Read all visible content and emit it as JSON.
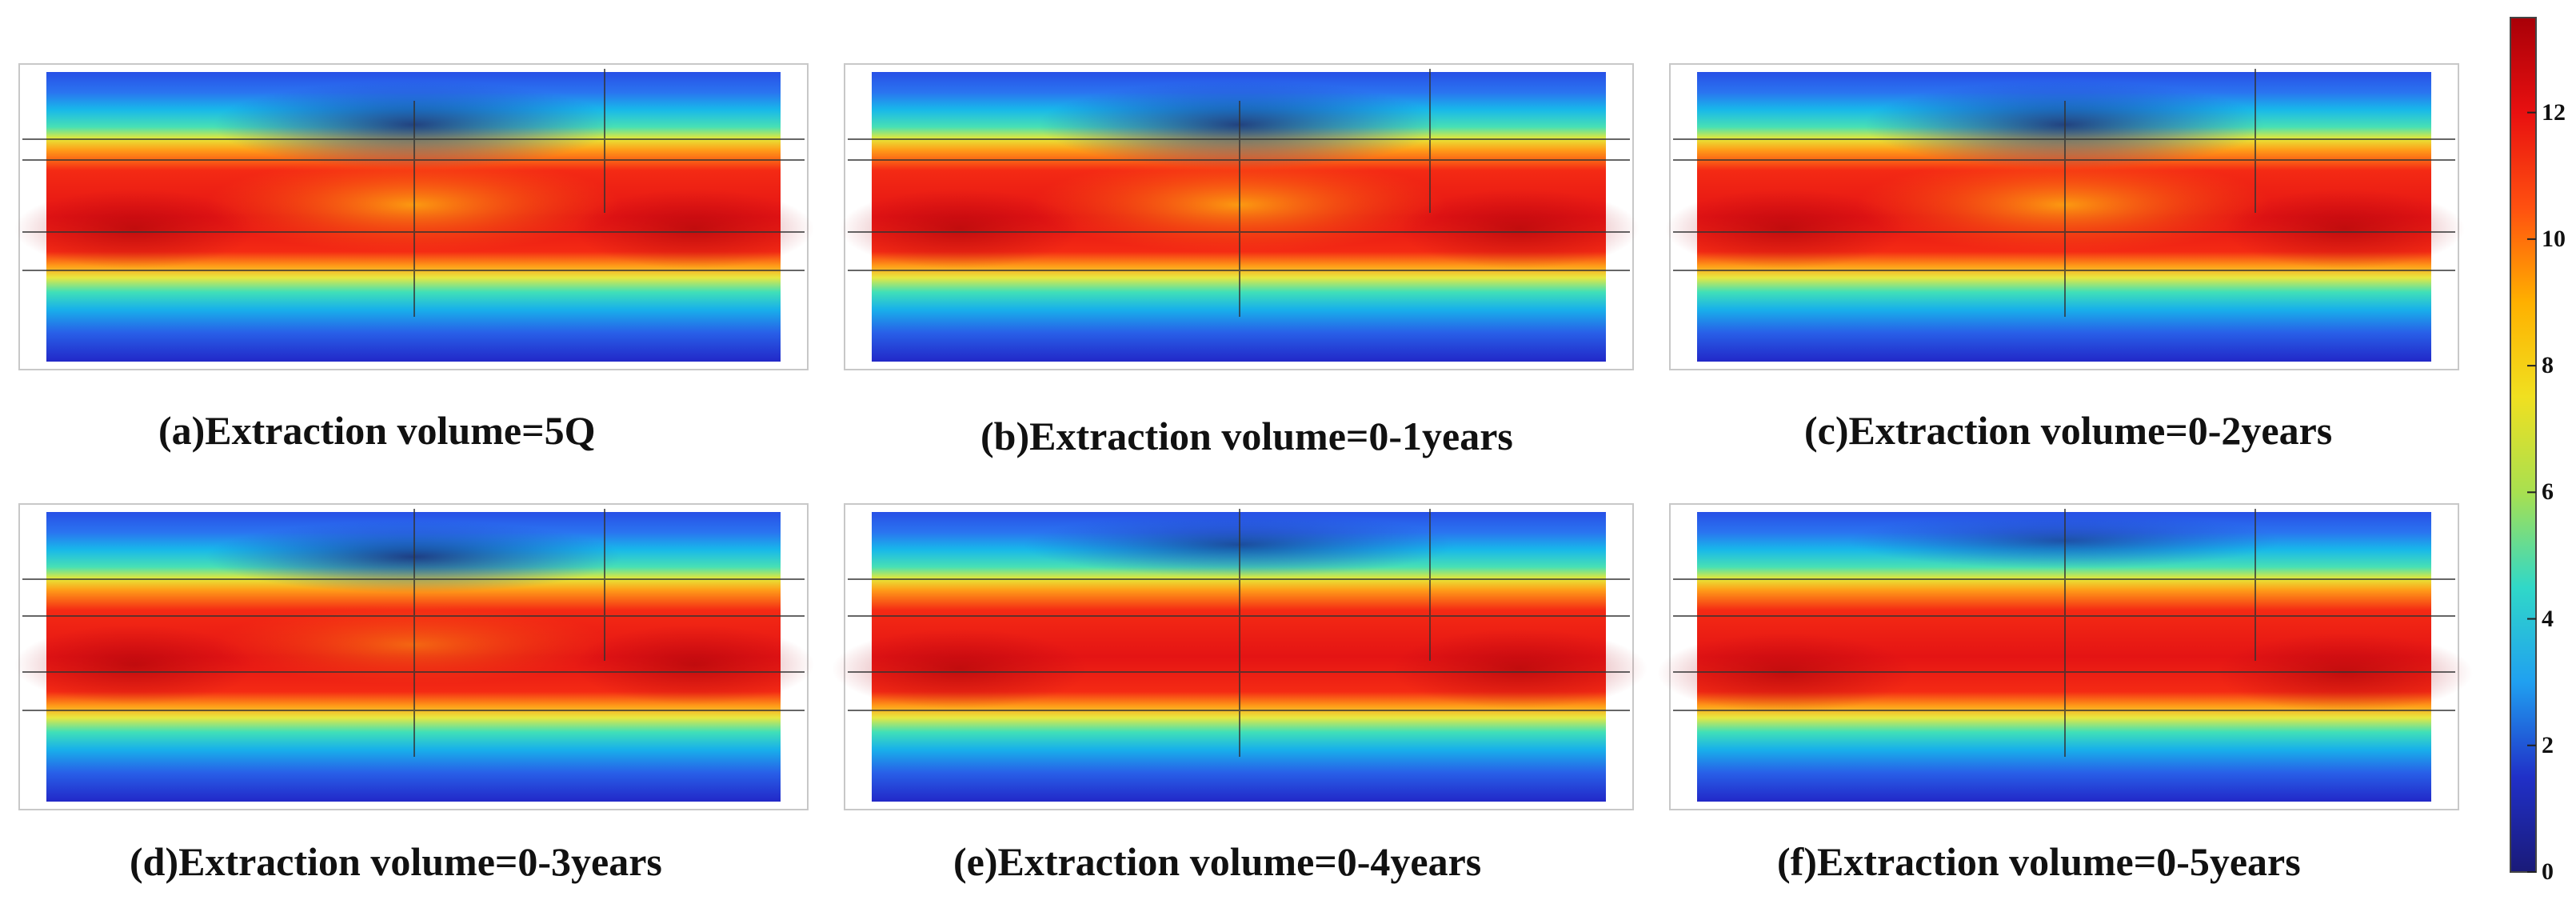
{
  "figure": {
    "panels": [
      {
        "id": "a",
        "caption": "(a)Extraction volume=5Q"
      },
      {
        "id": "b",
        "caption": "(b)Extraction volume=0-1years"
      },
      {
        "id": "c",
        "caption": "(c)Extraction volume=0-2years"
      },
      {
        "id": "d",
        "caption": "(d)Extraction volume=0-3years"
      },
      {
        "id": "e",
        "caption": "(e)Extraction volume=0-4years"
      },
      {
        "id": "f",
        "caption": "(f)Extraction volume=0-5years"
      }
    ],
    "colorbar": {
      "min": 0,
      "max": 13.5,
      "ticks": [
        "0",
        "2",
        "4",
        "6",
        "8",
        "10",
        "12"
      ],
      "colors": [
        "#1a1a78",
        "#2030c8",
        "#20a0f0",
        "#30d8c8",
        "#a8e050",
        "#f0e020",
        "#ffb000",
        "#ff5010",
        "#e81010",
        "#a80008"
      ]
    }
  }
}
